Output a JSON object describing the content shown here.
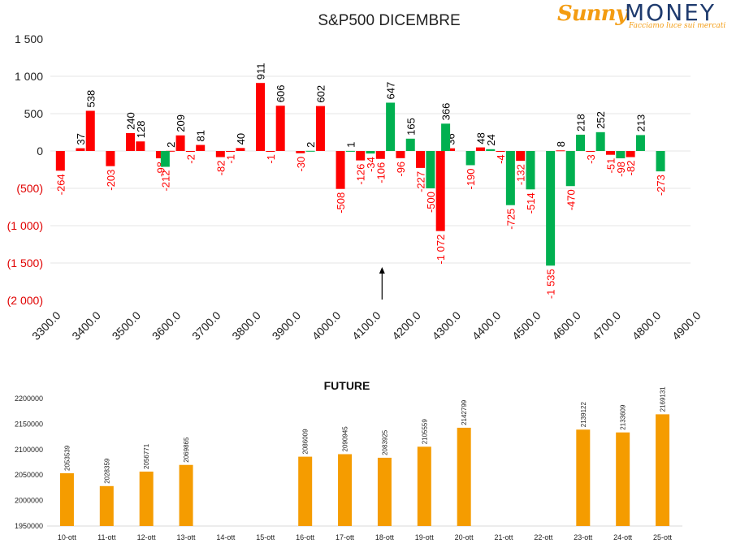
{
  "logo": {
    "brand_left": "Sunny",
    "brand_right": "MONEY",
    "tagline": "Facciamo luce sui mercati"
  },
  "chart_data": [
    {
      "type": "bar",
      "title": "S&P500 DICEMBRE",
      "y_ticks": [
        "1 500",
        "1 000",
        "500",
        "0",
        "(500)",
        "(1 000)",
        "(1 500)",
        "(2 000)"
      ],
      "ylim": [
        -2000,
        1500
      ],
      "x_ticks": [
        "3300.0",
        "3400.0",
        "3500.0",
        "3600.0",
        "3700.0",
        "3800.0",
        "3900.0",
        "4000.0",
        "4100.0",
        "4200.0",
        "4300.0",
        "4400.0",
        "4500.0",
        "4600.0",
        "4700.0",
        "4800.0",
        "4900.0"
      ],
      "xlim": [
        3300,
        4900
      ],
      "grid": true,
      "colors": {
        "red": "#ff0000",
        "green": "#00b050",
        "positive_label": "#000000",
        "negative_label": "#ff0000"
      },
      "series": [
        {
          "color": "red",
          "values": [
            {
              "x": 3325,
              "y": -264
            },
            {
              "x": 3375,
              "y": 37
            },
            {
              "x": 3400,
              "y": 538
            },
            {
              "x": 3450,
              "y": -203
            },
            {
              "x": 3500,
              "y": 240
            },
            {
              "x": 3525,
              "y": 128
            },
            {
              "x": 3575,
              "y": -98
            },
            {
              "x": 3600,
              "y": 2
            },
            {
              "x": 3625,
              "y": 209
            },
            {
              "x": 3650,
              "y": -2
            },
            {
              "x": 3675,
              "y": 81
            },
            {
              "x": 3725,
              "y": -82
            },
            {
              "x": 3750,
              "y": -1
            },
            {
              "x": 3775,
              "y": 40
            },
            {
              "x": 3825,
              "y": 911
            },
            {
              "x": 3850,
              "y": -1
            },
            {
              "x": 3875,
              "y": 606
            },
            {
              "x": 3925,
              "y": -30
            },
            {
              "x": 3975,
              "y": 602
            },
            {
              "x": 4025,
              "y": -508
            },
            {
              "x": 4075,
              "y": -126
            },
            {
              "x": 4125,
              "y": -106
            },
            {
              "x": 4175,
              "y": -96
            },
            {
              "x": 4225,
              "y": -227
            },
            {
              "x": 4275,
              "y": -1072
            },
            {
              "x": 4300,
              "y": 36
            },
            {
              "x": 4375,
              "y": 48
            },
            {
              "x": 4425,
              "y": -4
            },
            {
              "x": 4475,
              "y": -132
            },
            {
              "x": 4575,
              "y": 8
            },
            {
              "x": 4650,
              "y": -3
            },
            {
              "x": 4700,
              "y": -51
            },
            {
              "x": 4750,
              "y": -82
            }
          ]
        },
        {
          "color": "green",
          "values": [
            {
              "x": 3587,
              "y": -212
            },
            {
              "x": 3950,
              "y": 2
            },
            {
              "x": 4050,
              "y": 1
            },
            {
              "x": 4100,
              "y": -34
            },
            {
              "x": 4150,
              "y": 647
            },
            {
              "x": 4200,
              "y": 165
            },
            {
              "x": 4250,
              "y": -500
            },
            {
              "x": 4288,
              "y": 366
            },
            {
              "x": 4350,
              "y": -190
            },
            {
              "x": 4400,
              "y": 24
            },
            {
              "x": 4450,
              "y": -725
            },
            {
              "x": 4500,
              "y": -514
            },
            {
              "x": 4550,
              "y": -1535
            },
            {
              "x": 4600,
              "y": -470
            },
            {
              "x": 4625,
              "y": 218
            },
            {
              "x": 4675,
              "y": 252
            },
            {
              "x": 4725,
              "y": -98
            },
            {
              "x": 4775,
              "y": 213
            },
            {
              "x": 4825,
              "y": -273
            }
          ]
        }
      ],
      "annotations": [
        {
          "type": "arrow",
          "x": 4125,
          "direction": "up"
        }
      ]
    },
    {
      "type": "bar",
      "title": "FUTURE",
      "categories": [
        "10-ott",
        "11-ott",
        "12-ott",
        "13-ott",
        "14-ott",
        "15-ott",
        "16-ott",
        "17-ott",
        "18-ott",
        "19-ott",
        "20-ott",
        "21-ott",
        "22-ott",
        "23-ott",
        "24-ott",
        "25-ott"
      ],
      "values": [
        2053539,
        2028359,
        2056771,
        2069865,
        null,
        null,
        2086009,
        2090945,
        2083925,
        2105559,
        2142799,
        null,
        null,
        2139122,
        2133609,
        2169131
      ],
      "y_ticks": [
        "2200000",
        "2150000",
        "2100000",
        "2050000",
        "2000000",
        "1950000"
      ],
      "ylim": [
        1950000,
        2200000
      ],
      "color": "#f59c00"
    }
  ]
}
